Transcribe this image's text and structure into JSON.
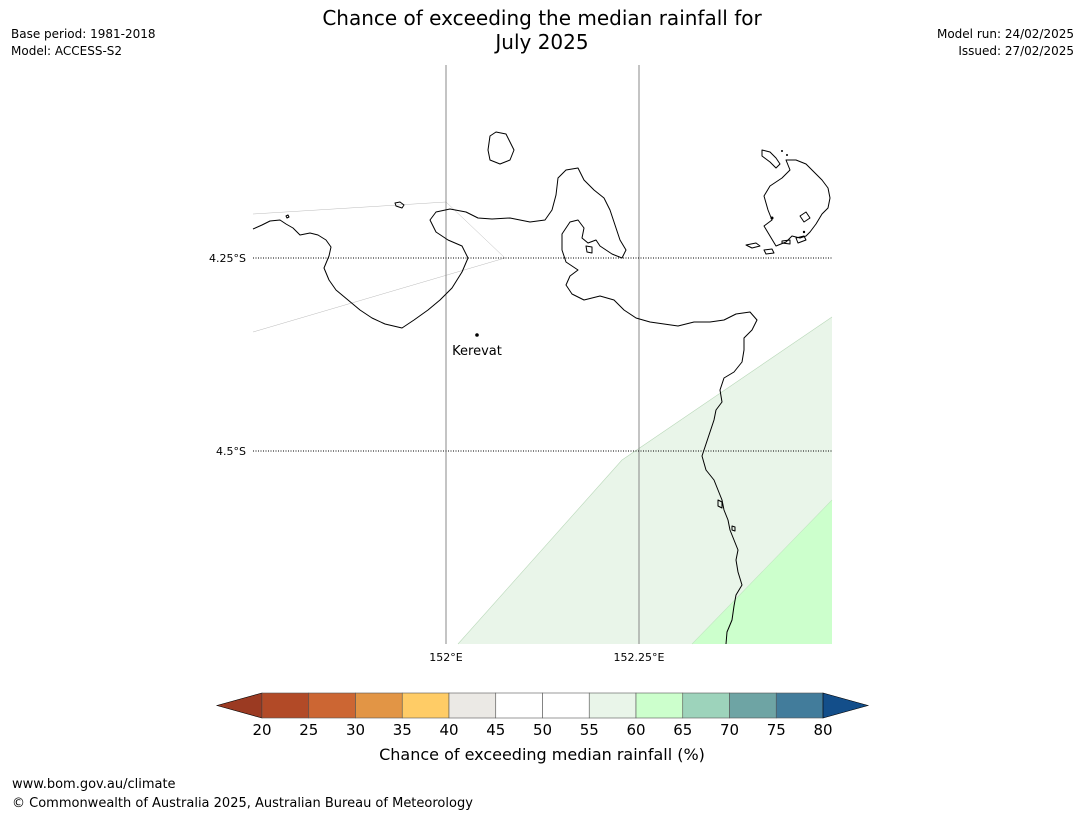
{
  "title": {
    "line1": "Chance of exceeding the median rainfall for",
    "line2": "July 2025"
  },
  "meta_left": {
    "base_period": "Base period: 1981-2018",
    "model": "Model: ACCESS-S2"
  },
  "meta_right": {
    "model_run": "Model run: 24/02/2025",
    "issued": "Issued: 27/02/2025"
  },
  "map": {
    "lat_labels": [
      "4.25°S",
      "4.5°S"
    ],
    "lon_labels": [
      "152°E",
      "152.25°E"
    ],
    "place": {
      "name": "Kerevat"
    },
    "fill_colors": {
      "band_55_60": "#e9f5e9",
      "band_60_65": "#ccffcc",
      "coast": "#000000"
    }
  },
  "colorbar": {
    "label": "Chance of exceeding median rainfall (%)",
    "ticks": [
      "20",
      "25",
      "30",
      "35",
      "40",
      "45",
      "50",
      "55",
      "60",
      "65",
      "70",
      "75",
      "80"
    ],
    "under_color": "#9b3a22",
    "over_color": "#134e8a",
    "colors": [
      "#b24a27",
      "#cc6633",
      "#e29545",
      "#ffcc66",
      "#ebe9e5",
      "#ffffff",
      "#ffffff",
      "#e9f5e9",
      "#ccffcc",
      "#9dd3bb",
      "#6ea4a4",
      "#427c9b"
    ]
  },
  "footer": {
    "url": "www.bom.gov.au/climate",
    "copyright": "© Commonwealth of Australia 2025, Australian Bureau of Meteorology"
  }
}
